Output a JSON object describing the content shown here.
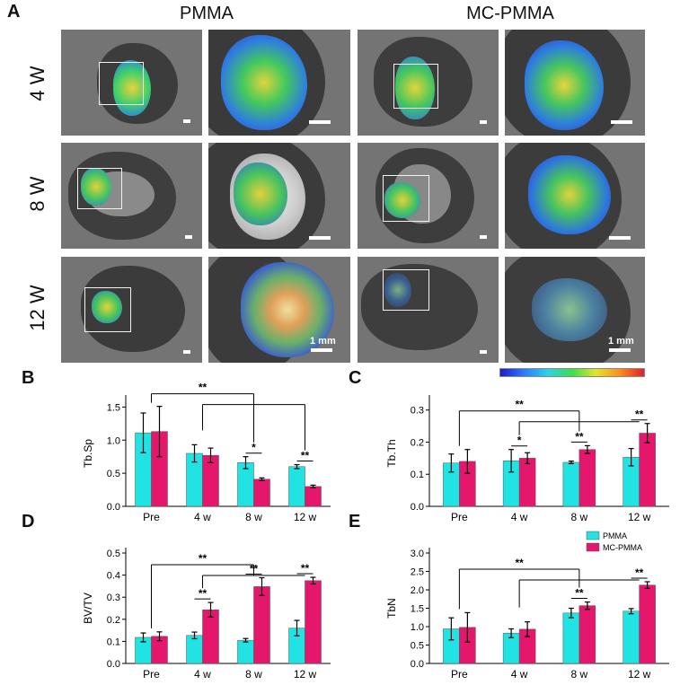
{
  "panel_letters": {
    "a": "A",
    "b": "B",
    "c": "C",
    "d": "D",
    "e": "E"
  },
  "panel_a": {
    "columns": [
      "PMMA",
      "MC-PMMA"
    ],
    "rows": [
      "4 W",
      "8 W",
      "12 W"
    ],
    "scale_bar_label": "1 mm"
  },
  "colors": {
    "pmma": "#22e3e3",
    "mc_pmma": "#e5176d"
  },
  "chart_data": [
    {
      "id": "B",
      "type": "bar",
      "ylabel": "Tb.Sp",
      "categories": [
        "Pre",
        "4 w",
        "8 w",
        "12 w"
      ],
      "ylim": [
        0,
        1.6
      ],
      "yticks": [
        0.0,
        0.5,
        1.0,
        1.5
      ],
      "series": [
        {
          "name": "PMMA",
          "values": [
            1.11,
            0.8,
            0.66,
            0.6
          ],
          "errors": [
            0.3,
            0.13,
            0.09,
            0.03
          ]
        },
        {
          "name": "MC-PMMA",
          "values": [
            1.13,
            0.77,
            0.41,
            0.3
          ],
          "errors": [
            0.38,
            0.11,
            0.02,
            0.02
          ]
        }
      ],
      "pair_sig": [
        "",
        "",
        "*",
        "**"
      ],
      "group_sig": "**"
    },
    {
      "id": "C",
      "type": "bar",
      "ylabel": "Tb.Th",
      "categories": [
        "Pre",
        "4 w",
        "8 w",
        "12 w"
      ],
      "ylim": [
        0,
        0.33
      ],
      "yticks": [
        0.0,
        0.1,
        0.2,
        0.3
      ],
      "series": [
        {
          "name": "PMMA",
          "values": [
            0.135,
            0.142,
            0.137,
            0.153
          ],
          "errors": [
            0.028,
            0.035,
            0.004,
            0.027
          ]
        },
        {
          "name": "MC-PMMA",
          "values": [
            0.14,
            0.15,
            0.177,
            0.228
          ],
          "errors": [
            0.037,
            0.017,
            0.012,
            0.03
          ]
        }
      ],
      "pair_sig": [
        "",
        "*",
        "**",
        "**"
      ],
      "group_sig": "**"
    },
    {
      "id": "D",
      "type": "bar",
      "ylabel": "BV/TV",
      "categories": [
        "Pre",
        "4 w",
        "8 w",
        "12 w"
      ],
      "ylim": [
        0,
        0.5
      ],
      "yticks": [
        0.0,
        0.1,
        0.2,
        0.3,
        0.4,
        0.5
      ],
      "series": [
        {
          "name": "PMMA",
          "values": [
            0.118,
            0.127,
            0.105,
            0.16
          ],
          "errors": [
            0.02,
            0.015,
            0.008,
            0.035
          ]
        },
        {
          "name": "MC-PMMA",
          "values": [
            0.123,
            0.243,
            0.348,
            0.375
          ],
          "errors": [
            0.02,
            0.033,
            0.04,
            0.015
          ]
        }
      ],
      "pair_sig": [
        "",
        "**",
        "**",
        "**"
      ],
      "group_sig": "**"
    },
    {
      "id": "E",
      "type": "bar",
      "ylabel": "TbN",
      "categories": [
        "Pre",
        "4 w",
        "8 w",
        "12 w"
      ],
      "ylim": [
        0,
        3.0
      ],
      "yticks": [
        0.0,
        0.5,
        1.0,
        1.5,
        2.0,
        2.5,
        3.0
      ],
      "series": [
        {
          "name": "PMMA",
          "values": [
            0.94,
            0.82,
            1.37,
            1.42
          ],
          "errors": [
            0.3,
            0.12,
            0.13,
            0.07
          ]
        },
        {
          "name": "MC-PMMA",
          "values": [
            0.98,
            0.93,
            1.57,
            2.13
          ],
          "errors": [
            0.4,
            0.2,
            0.1,
            0.09
          ]
        }
      ],
      "pair_sig": [
        "",
        "",
        "**",
        "**"
      ],
      "group_sig": "**",
      "legend": [
        "PMMA",
        "MC-PMMA"
      ]
    }
  ]
}
